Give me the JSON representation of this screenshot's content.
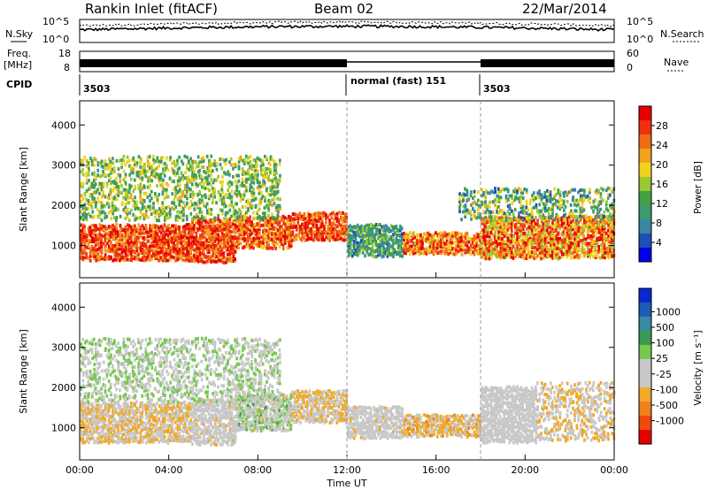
{
  "header": {
    "station": "Rankin Inlet (fitACF)",
    "beam": "Beam 02",
    "date": "22/Mar/2014"
  },
  "labels": {
    "nsky": "N.Sky",
    "nsearch": "N.Search",
    "nave": "Nave",
    "freq_top": "Freq.",
    "freq_unit": "[MHz]",
    "cpid": "CPID"
  },
  "noise_axis": {
    "low": "10^0",
    "high": "10^5"
  },
  "freq_axis": {
    "low": "8",
    "high": "18"
  },
  "nave_axis": {
    "low": "0",
    "high": "60"
  },
  "cpid_segments": [
    {
      "text": "3503"
    },
    {
      "text": "normal (fast) 151"
    },
    {
      "text": "3503"
    }
  ],
  "x_axis": {
    "title": "Time UT",
    "ticks": [
      "00:00",
      "04:00",
      "08:00",
      "12:00",
      "16:00",
      "20:00",
      "00:00"
    ]
  },
  "colors": {
    "power": [
      "#0000e8",
      "#1f4fb4",
      "#3a86a4",
      "#3d9a70",
      "#44a046",
      "#9ac832",
      "#f0d21e",
      "#f0a21e",
      "#f06c14",
      "#ee3010",
      "#e80000"
    ],
    "velocity": [
      "#e80000",
      "#ee4a10",
      "#f0801a",
      "#f0aa28",
      "#c8c8c8",
      "#c8c8c8",
      "#78c850",
      "#3c9a55",
      "#3a8aa0",
      "#1f5ab4",
      "#0a28d2"
    ]
  },
  "chart_data": [
    {
      "type": "heatmap",
      "name": "power",
      "ylabel": "Slant Range [km]",
      "yticks": [
        1000,
        2000,
        3000,
        4000
      ],
      "ylim": [
        200,
        4600
      ],
      "xlim": [
        0,
        24
      ],
      "colorbar": {
        "label": "Power [dB]",
        "ticks": [
          "4",
          "8",
          "12",
          "16",
          "20",
          "24",
          "28"
        ],
        "range": [
          0,
          30
        ]
      },
      "bands": [
        {
          "t0": 0.0,
          "t1": 5.0,
          "r0": 600,
          "r1": 1500,
          "vmin": 20,
          "vmax": 30
        },
        {
          "t0": 5.0,
          "t1": 7.0,
          "r0": 550,
          "r1": 1650,
          "vmin": 20,
          "vmax": 30
        },
        {
          "t0": 7.0,
          "t1": 9.5,
          "r0": 900,
          "r1": 1700,
          "vmin": 18,
          "vmax": 30
        },
        {
          "t0": 9.5,
          "t1": 12.0,
          "r0": 1100,
          "r1": 1800,
          "vmin": 20,
          "vmax": 30
        },
        {
          "t0": 12.0,
          "t1": 14.5,
          "r0": 700,
          "r1": 1500,
          "vmin": 4,
          "vmax": 16
        },
        {
          "t0": 14.5,
          "t1": 18.0,
          "r0": 750,
          "r1": 1300,
          "vmin": 16,
          "vmax": 30
        },
        {
          "t0": 18.0,
          "t1": 24.0,
          "r0": 650,
          "r1": 1700,
          "vmin": 14,
          "vmax": 30
        },
        {
          "t0": 0.0,
          "t1": 9.0,
          "r0": 1600,
          "r1": 3200,
          "vmin": 8,
          "vmax": 20
        },
        {
          "t0": 17.0,
          "t1": 24.0,
          "r0": 1600,
          "r1": 2400,
          "vmin": 4,
          "vmax": 20
        }
      ]
    },
    {
      "type": "heatmap",
      "name": "velocity",
      "ylabel": "Slant Range [km]",
      "yticks": [
        1000,
        2000,
        3000,
        4000
      ],
      "ylim": [
        200,
        4600
      ],
      "xlim": [
        0,
        24
      ],
      "colorbar": {
        "label": "Velocity [m s⁻¹]",
        "ticks": [
          "1000",
          "500",
          "100",
          "25",
          "-25",
          "-100",
          "-500",
          "-1000"
        ],
        "range": [
          -1000,
          1000
        ]
      },
      "bands": [
        {
          "t0": 0.0,
          "t1": 5.0,
          "r0": 600,
          "r1": 1600,
          "vmin": -400,
          "vmax": -80
        },
        {
          "t0": 5.0,
          "t1": 7.0,
          "r0": 550,
          "r1": 1700,
          "vmin": -300,
          "vmax": 60
        },
        {
          "t0": 7.0,
          "t1": 9.5,
          "r0": 900,
          "r1": 1800,
          "vmin": -300,
          "vmax": 300
        },
        {
          "t0": 9.5,
          "t1": 12.0,
          "r0": 1100,
          "r1": 1900,
          "vmin": -400,
          "vmax": -80
        },
        {
          "t0": 12.0,
          "t1": 14.5,
          "r0": 700,
          "r1": 1500,
          "vmin": -300,
          "vmax": -50
        },
        {
          "t0": 14.5,
          "t1": 18.0,
          "r0": 750,
          "r1": 1300,
          "vmin": -500,
          "vmax": -100
        },
        {
          "t0": 18.0,
          "t1": 20.5,
          "r0": 600,
          "r1": 2000,
          "vmin": -40,
          "vmax": 40
        },
        {
          "t0": 20.5,
          "t1": 24.0,
          "r0": 650,
          "r1": 2100,
          "vmin": -400,
          "vmax": -60
        },
        {
          "t0": 0.0,
          "t1": 9.0,
          "r0": 1600,
          "r1": 3200,
          "vmin": -100,
          "vmax": 200
        }
      ]
    }
  ]
}
